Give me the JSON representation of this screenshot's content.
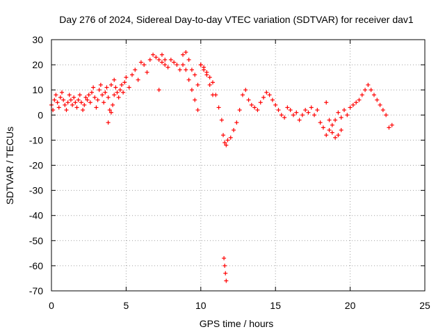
{
  "chart_data": {
    "type": "scatter",
    "title": "Day 276 of 2024, Sidereal Day-to-day VTEC variation (SDTVAR) for receiver dav1",
    "xlabel": "GPS time / hours",
    "ylabel": "SDTVAR / TECUs",
    "xlim": [
      0,
      25
    ],
    "ylim": [
      -70,
      30
    ],
    "xticks": [
      0,
      5,
      10,
      15,
      20,
      25
    ],
    "yticks": [
      -70,
      -60,
      -50,
      -40,
      -30,
      -20,
      -10,
      0,
      10,
      20,
      30
    ],
    "grid": true,
    "marker": "plus",
    "color": "#ff0000",
    "series": [
      {
        "name": "SDTVAR",
        "x": [
          0.0,
          0.1,
          0.2,
          0.3,
          0.4,
          0.5,
          0.6,
          0.7,
          0.8,
          0.9,
          1.0,
          1.1,
          1.2,
          1.3,
          1.4,
          1.5,
          1.6,
          1.7,
          1.8,
          1.9,
          2.0,
          2.1,
          2.2,
          2.3,
          2.4,
          2.5,
          2.6,
          2.7,
          2.8,
          2.9,
          3.0,
          3.1,
          3.2,
          3.3,
          3.4,
          3.5,
          3.6,
          3.7,
          3.8,
          3.9,
          4.0,
          4.1,
          4.2,
          4.3,
          4.4,
          4.5,
          4.6,
          4.7,
          4.8,
          4.9,
          5.0,
          5.2,
          5.4,
          5.6,
          5.8,
          6.0,
          6.2,
          6.4,
          6.6,
          6.8,
          7.0,
          7.2,
          7.4,
          7.6,
          7.8,
          8.0,
          8.2,
          8.4,
          8.6,
          8.8,
          9.0,
          9.2,
          9.4,
          9.6,
          9.8,
          10.0,
          10.2,
          10.4,
          10.6,
          10.8,
          11.0,
          11.2,
          11.4,
          11.5,
          11.6,
          11.7,
          11.8,
          12.0,
          12.2,
          12.4,
          12.6,
          12.8,
          13.0,
          13.2,
          13.4,
          13.6,
          13.8,
          14.0,
          14.2,
          14.4,
          14.6,
          14.8,
          15.0,
          15.2,
          15.4,
          15.6,
          15.8,
          16.0,
          16.2,
          16.4,
          16.6,
          16.8,
          17.0,
          17.2,
          17.4,
          17.6,
          17.8,
          18.0,
          18.2,
          18.4,
          18.6,
          18.8,
          19.0,
          19.2,
          19.4,
          19.6,
          19.8,
          20.0,
          20.2,
          20.4,
          20.6,
          20.8,
          21.0,
          21.2,
          21.4,
          21.6,
          21.8,
          22.0,
          22.2,
          22.4,
          22.6,
          22.8,
          3.8,
          4.0,
          4.2,
          7.2,
          7.4,
          7.6,
          8.8,
          9.0,
          9.2,
          9.4,
          9.6,
          9.8,
          10.0,
          10.2,
          10.4,
          10.6,
          10.8,
          18.4,
          18.6,
          18.8,
          19.0,
          19.2,
          19.4,
          11.55,
          11.6,
          11.65,
          11.7
        ],
        "y": [
          4,
          2,
          6,
          8,
          5,
          3,
          7,
          9,
          6,
          4,
          2,
          5,
          8,
          6,
          4,
          7,
          5,
          3,
          6,
          8,
          5,
          2,
          4,
          7,
          6,
          8,
          5,
          9,
          11,
          7,
          3,
          6,
          10,
          12,
          8,
          5,
          9,
          11,
          7,
          2,
          1,
          4,
          8,
          11,
          9,
          7,
          10,
          12,
          9,
          13,
          15,
          11,
          16,
          18,
          14,
          21,
          20,
          17,
          22,
          24,
          23,
          22,
          21,
          20,
          19,
          22,
          21,
          20,
          18,
          24,
          25,
          22,
          18,
          16,
          12,
          20,
          19,
          17,
          15,
          13,
          8,
          3,
          -2,
          -8,
          -11,
          -12,
          -10,
          -9,
          -6,
          -3,
          2,
          8,
          10,
          6,
          4,
          3,
          2,
          5,
          7,
          9,
          8,
          6,
          4,
          2,
          0,
          -1,
          3,
          2,
          0,
          1,
          -2,
          0,
          2,
          1,
          3,
          0,
          2,
          -3,
          -5,
          -8,
          -6,
          -4,
          -2,
          1,
          -1,
          2,
          0,
          3,
          4,
          5,
          6,
          8,
          10,
          12,
          10,
          8,
          6,
          4,
          2,
          0,
          -5,
          -4,
          -3,
          12,
          14,
          10,
          24,
          22,
          20,
          18,
          14,
          10,
          6,
          2,
          20,
          18,
          16,
          12,
          8,
          5,
          -2,
          -7,
          -9,
          -8,
          -6,
          -57,
          -60,
          -63,
          -66
        ]
      }
    ]
  }
}
